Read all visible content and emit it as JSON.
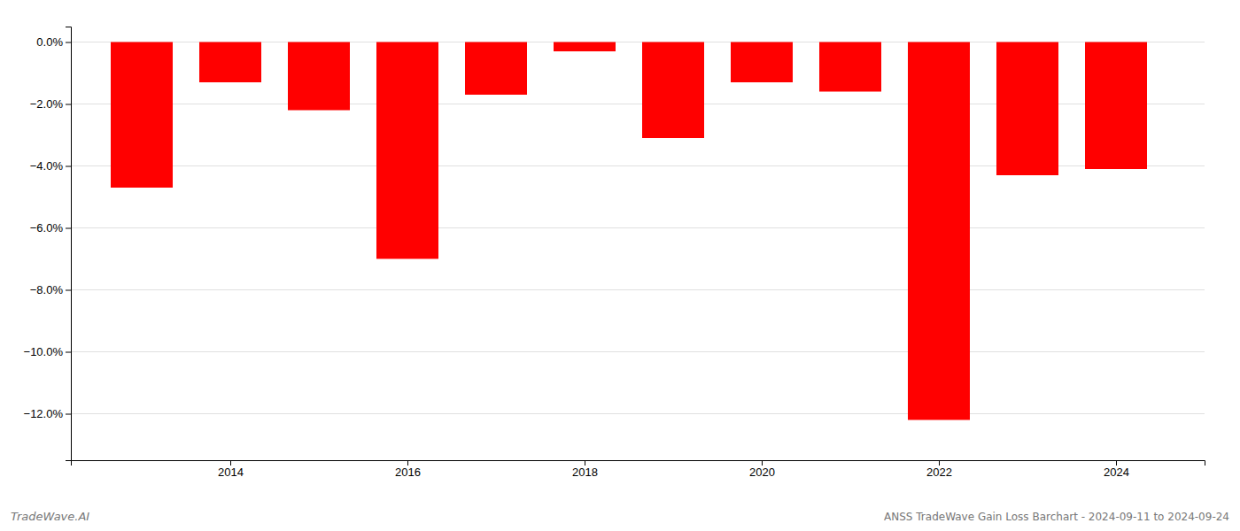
{
  "chart_data": {
    "type": "bar",
    "title": "ANSS TradeWave Gain Loss Barchart - 2024-09-11 to 2024-09-24",
    "annotations": [
      "TradeWave.AI"
    ],
    "x": [
      2013,
      2014,
      2015,
      2016,
      2017,
      2018,
      2019,
      2020,
      2021,
      2022,
      2023,
      2024
    ],
    "values": [
      -4.7,
      -1.3,
      -2.2,
      -7.0,
      -1.7,
      -0.3,
      -3.1,
      -1.3,
      -1.6,
      -12.2,
      -4.3,
      -4.1
    ],
    "color": "#ff0000",
    "xlim": [
      2012.2,
      2025.0
    ],
    "xticks": [
      2014,
      2016,
      2018,
      2020,
      2022,
      2024
    ],
    "ylim": [
      -13.5,
      0.5
    ],
    "yticks": [
      {
        "value": 0.0,
        "label": "0.0%"
      },
      {
        "value": -2.0,
        "label": "−2.0%"
      },
      {
        "value": -4.0,
        "label": "−4.0%"
      },
      {
        "value": -6.0,
        "label": "−6.0%"
      },
      {
        "value": -8.0,
        "label": "−8.0%"
      },
      {
        "value": -10.0,
        "label": "−10.0%"
      },
      {
        "value": -12.0,
        "label": "−12.0%"
      }
    ],
    "grid": true
  }
}
